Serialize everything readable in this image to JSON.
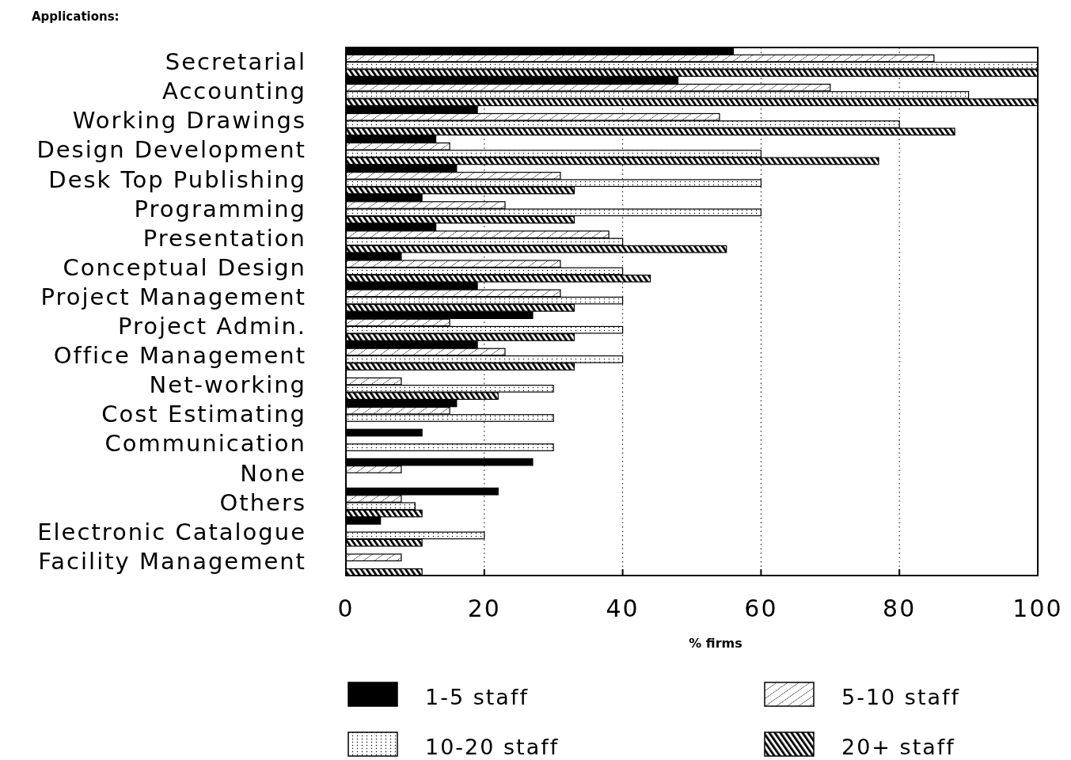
{
  "chart_data": {
    "type": "bar",
    "orientation": "horizontal",
    "title": "Applications:",
    "xlabel": "% firms",
    "categories": [
      "Secretarial",
      "Accounting",
      "Working Drawings",
      "Design Development",
      "Desk Top Publishing",
      "Programming",
      "Presentation",
      "Conceptual Design",
      "Project Management",
      "Project Admin.",
      "Office Management",
      "Net-working",
      "Cost Estimating",
      "Communication",
      "None",
      "Others",
      "Electronic Catalogue",
      "Facility Management"
    ],
    "series": [
      {
        "name": "1-5 staff",
        "color": "#000000",
        "values": [
          56,
          48,
          19,
          13,
          16,
          11,
          13,
          8,
          19,
          27,
          19,
          null,
          16,
          11,
          27,
          22,
          5,
          null
        ]
      },
      {
        "name": "5-10 staff",
        "color": "#000000",
        "values": [
          85,
          70,
          54,
          15,
          31,
          23,
          38,
          31,
          31,
          15,
          23,
          8,
          15,
          null,
          8,
          8,
          null,
          8
        ]
      },
      {
        "name": "10-20 staff",
        "color": "#000000",
        "values": [
          100,
          90,
          80,
          60,
          60,
          60,
          40,
          40,
          40,
          40,
          40,
          30,
          30,
          30,
          null,
          10,
          20,
          null
        ]
      },
      {
        "name": "20+ staff",
        "color": "#000000",
        "values": [
          100,
          100,
          88,
          77,
          33,
          33,
          55,
          44,
          33,
          33,
          33,
          22,
          null,
          null,
          null,
          11,
          11,
          11
        ]
      }
    ],
    "xlim": [
      0,
      100
    ],
    "xticks": [
      0,
      20,
      40,
      60,
      80,
      100
    ],
    "grid": "x",
    "legend": "bottom"
  }
}
